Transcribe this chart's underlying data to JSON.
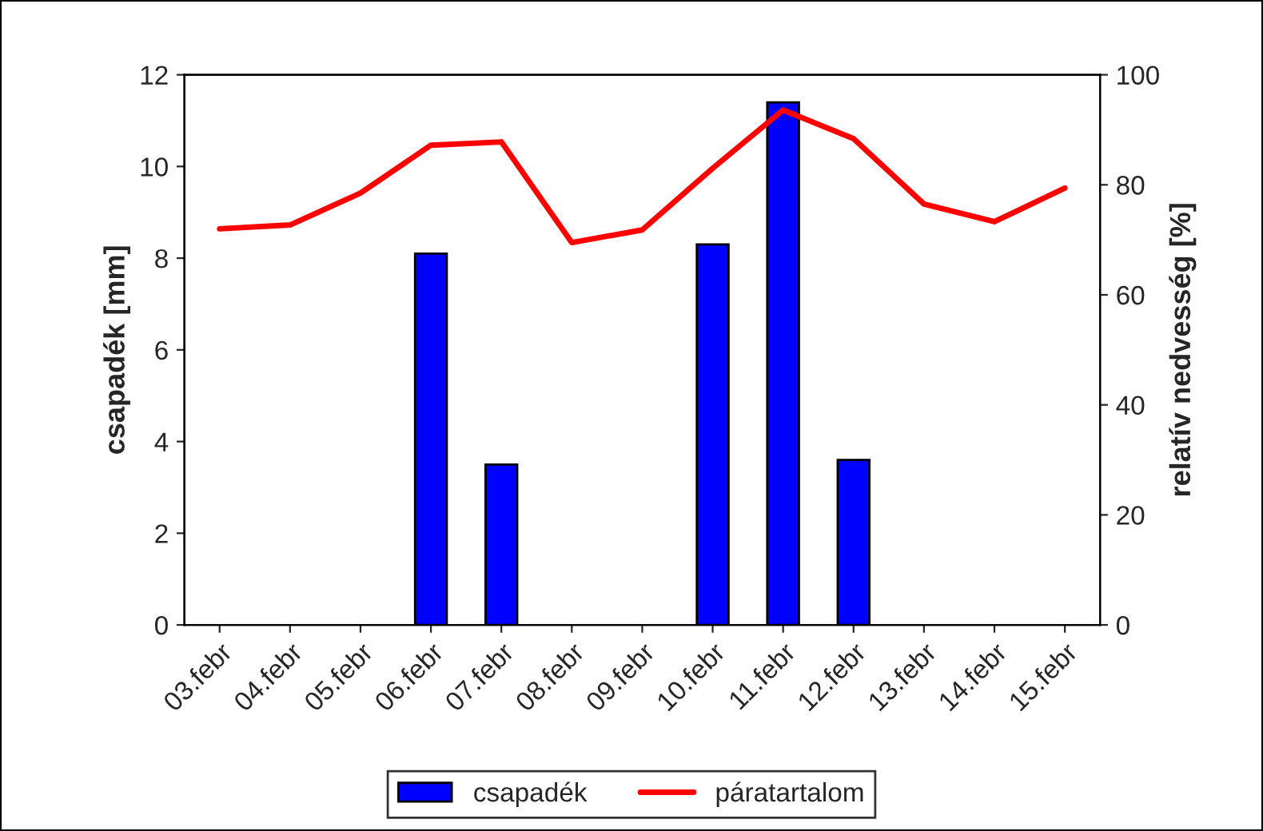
{
  "chart_data": {
    "type": "bar",
    "ylabel": "csapadék [mm]",
    "y2label": "relatív nedvesség [%]",
    "categories": [
      "03.febr",
      "04.febr",
      "05.febr",
      "06.febr",
      "07.febr",
      "08.febr",
      "09.febr",
      "10.febr",
      "11.febr",
      "12.febr",
      "13.febr",
      "14.febr",
      "15.febr"
    ],
    "series": [
      {
        "name": "csapadék",
        "color": "#0000ff",
        "values": [
          null,
          null,
          null,
          8.1,
          3.5,
          null,
          null,
          8.3,
          11.4,
          3.6,
          null,
          null,
          null
        ]
      },
      {
        "name": "páratartalom",
        "type": "line",
        "axis": "y2",
        "color": "#ff0000",
        "values": [
          72,
          72.7,
          78.5,
          87.2,
          87.8,
          69.5,
          71.8,
          83,
          93.6,
          88.4,
          76.5,
          73.3,
          79.4
        ]
      }
    ],
    "ylim": [
      0,
      12
    ],
    "yticks": [
      0,
      2,
      4,
      6,
      8,
      10,
      12
    ],
    "y2lim": [
      0,
      100
    ],
    "y2ticks": [
      0,
      20,
      40,
      60,
      80,
      100
    ],
    "grid": false,
    "legend": "bottom",
    "marker": "none",
    "line_style": "solid"
  }
}
